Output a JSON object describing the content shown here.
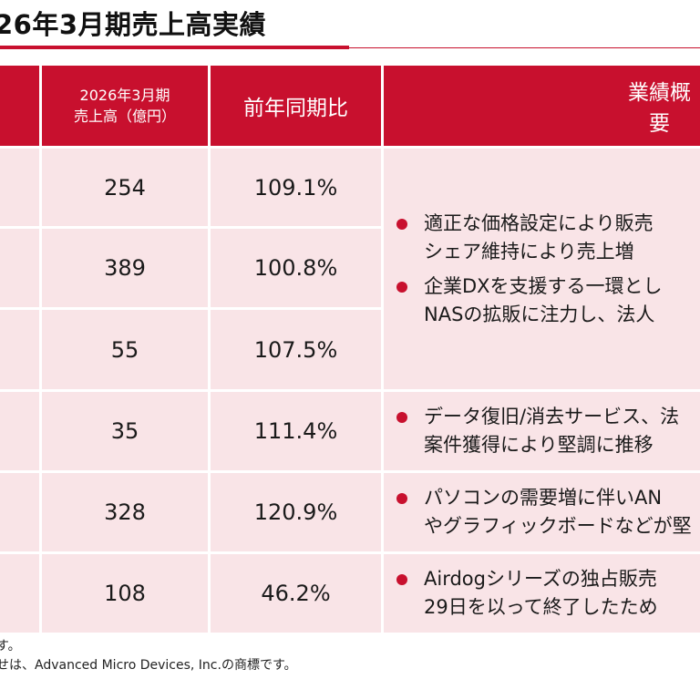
{
  "title": "26年3月期売上高実績",
  "table": {
    "header": {
      "sales_line1": "2026年3月期",
      "sales_line2": "売上高（億円）",
      "yoy": "前年同期比",
      "overview": "業績概要"
    },
    "rows": [
      {
        "sales": "254",
        "yoy": "109.1%"
      },
      {
        "sales": "389",
        "yoy": "100.8%"
      },
      {
        "sales": "55",
        "yoy": "107.5%"
      },
      {
        "sales": "35",
        "yoy": "111.4%"
      },
      {
        "sales": "328",
        "yoy": "120.9%"
      },
      {
        "sales": "108",
        "yoy": "46.2%"
      }
    ],
    "summaries": [
      {
        "bullets": [
          {
            "line1": "適正な価格設定により販売",
            "line2": "シェア維持により売上増"
          },
          {
            "line1": "企業DXを支援する一環とし",
            "line2": "NASの拡販に注力し、法人"
          }
        ]
      },
      {
        "bullets": [
          {
            "line1": "データ復旧/消去サービス、法",
            "line2": "案件獲得により堅調に推移"
          }
        ]
      },
      {
        "bullets": [
          {
            "line1": "パソコンの需要増に伴いAN",
            "line2": "やグラフィックボードなどが堅"
          }
        ]
      },
      {
        "bullets": [
          {
            "line1": "Airdogシリーズの独占販売",
            "line2": "29日を以って終了したため"
          }
        ]
      }
    ]
  },
  "footnotes": {
    "line1": "す。",
    "line2": "せは、Advanced Micro Devices, Inc.の商標です。"
  },
  "colors": {
    "accent": "#c8102e",
    "row_bg": "#f9e4e7"
  }
}
